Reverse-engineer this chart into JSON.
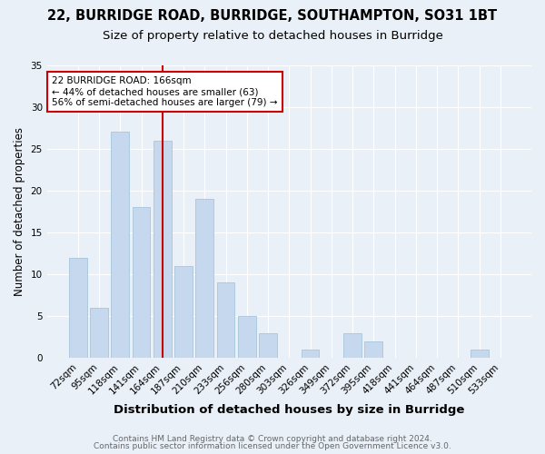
{
  "title1": "22, BURRIDGE ROAD, BURRIDGE, SOUTHAMPTON, SO31 1BT",
  "title2": "Size of property relative to detached houses in Burridge",
  "xlabel": "Distribution of detached houses by size in Burridge",
  "ylabel": "Number of detached properties",
  "categories": [
    "72sqm",
    "95sqm",
    "118sqm",
    "141sqm",
    "164sqm",
    "187sqm",
    "210sqm",
    "233sqm",
    "256sqm",
    "280sqm",
    "303sqm",
    "326sqm",
    "349sqm",
    "372sqm",
    "395sqm",
    "418sqm",
    "441sqm",
    "464sqm",
    "487sqm",
    "510sqm",
    "533sqm"
  ],
  "values": [
    12,
    6,
    27,
    18,
    26,
    11,
    19,
    9,
    5,
    3,
    0,
    1,
    0,
    3,
    2,
    0,
    0,
    0,
    0,
    1,
    0
  ],
  "bar_color": "#c5d8ed",
  "bar_edge_color": "#a8c4db",
  "vline_x_index": 4,
  "vline_color": "#cc0000",
  "annotation_text": "22 BURRIDGE ROAD: 166sqm\n← 44% of detached houses are smaller (63)\n56% of semi-detached houses are larger (79) →",
  "annotation_box_color": "#ffffff",
  "annotation_box_edge_color": "#cc0000",
  "ylim": [
    0,
    35
  ],
  "yticks": [
    0,
    5,
    10,
    15,
    20,
    25,
    30,
    35
  ],
  "footer1": "Contains HM Land Registry data © Crown copyright and database right 2024.",
  "footer2": "Contains public sector information licensed under the Open Government Licence v3.0.",
  "bg_color": "#eaf0f8",
  "plot_bg_color": "#eaf0f8",
  "title1_fontsize": 10.5,
  "title2_fontsize": 9.5,
  "xlabel_fontsize": 9.5,
  "ylabel_fontsize": 8.5,
  "tick_fontsize": 7.5,
  "footer_fontsize": 6.5
}
